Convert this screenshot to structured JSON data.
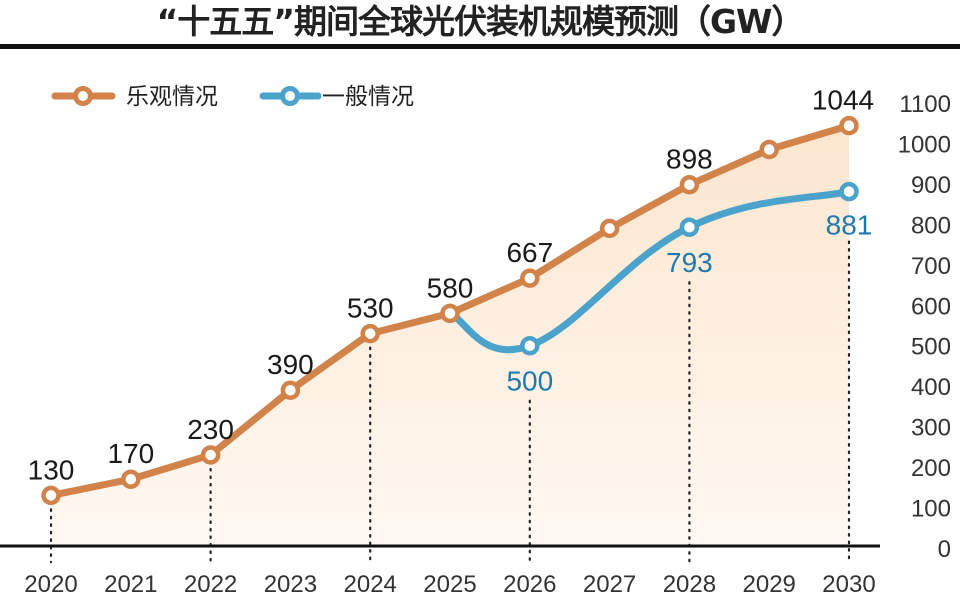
{
  "chart_data": {
    "type": "line",
    "title": "“十五五”期间全球光伏装机规模预测（GW）",
    "xlabel": "",
    "ylabel": "",
    "x": [
      "2020",
      "2021",
      "2022",
      "2023",
      "2024",
      "2025",
      "2026",
      "2027",
      "2028",
      "2029",
      "2030"
    ],
    "ylim": [
      0,
      1100
    ],
    "yticks": [
      0,
      100,
      200,
      300,
      400,
      500,
      600,
      700,
      800,
      900,
      1000,
      1100
    ],
    "legend_position": "top-left",
    "grid": false,
    "series": [
      {
        "name": "乐观情况",
        "color": "#D2834A",
        "x": [
          "2020",
          "2021",
          "2022",
          "2023",
          "2024",
          "2025",
          "2026",
          "2027",
          "2028",
          "2029",
          "2030"
        ],
        "values": [
          130,
          170,
          230,
          390,
          530,
          580,
          667,
          790,
          898,
          985,
          1044
        ],
        "labels": [
          "130",
          "170",
          "230",
          "390",
          "530",
          "580",
          "667",
          "",
          "898",
          "",
          "1044"
        ],
        "label_color": "#1a1a1a",
        "fill": true
      },
      {
        "name": "一般情况",
        "color": "#4BA3CC",
        "x": [
          "2025",
          "2026",
          "2028",
          "2030"
        ],
        "values": [
          580,
          500,
          793,
          881
        ],
        "labels": [
          "",
          "500",
          "793",
          "881"
        ],
        "label_color": "#1E7AAE",
        "smooth": true
      }
    ],
    "dotted_guides": [
      "2020",
      "2022",
      "2024",
      "2026",
      "2028",
      "2030"
    ]
  }
}
